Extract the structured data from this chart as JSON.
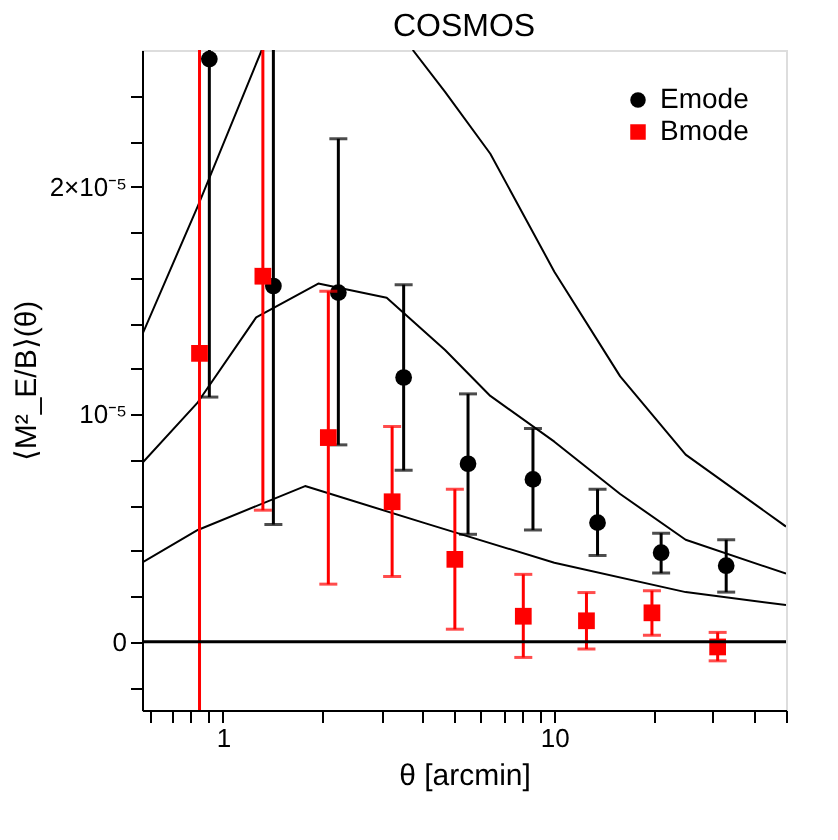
{
  "chart_data": {
    "type": "scatter",
    "title": "COSMOS",
    "xlabel": "θ [arcmin]",
    "ylabel": "⟨M²_E/B⟩(θ)",
    "log": "x",
    "grid": false,
    "legend": "top right",
    "xlim": [
      0.57,
      50
    ],
    "ylim": [
      -3e-06,
      2.6e-05
    ],
    "xticks": [
      {
        "value": 0.6,
        "label": null
      },
      {
        "value": 0.7,
        "label": null
      },
      {
        "value": 0.8,
        "label": null
      },
      {
        "value": 0.9,
        "label": null
      },
      1,
      {
        "value": 2,
        "label": null
      },
      {
        "value": 3,
        "label": null
      },
      {
        "value": 4,
        "label": null
      },
      {
        "value": 5,
        "label": null
      },
      {
        "value": 6,
        "label": null
      },
      {
        "value": 7,
        "label": null
      },
      {
        "value": 8,
        "label": null
      },
      {
        "value": 9,
        "label": null
      },
      10,
      {
        "value": 20,
        "label": null
      },
      {
        "value": 30,
        "label": null
      },
      {
        "value": 40,
        "label": null
      },
      {
        "value": 50,
        "label": null
      }
    ],
    "yticks": [
      {
        "value": -2e-06,
        "label": null
      },
      {
        "value": 0,
        "label": "0"
      },
      {
        "value": 2e-06,
        "label": null
      },
      {
        "value": 4e-06,
        "label": null
      },
      {
        "value": 6e-06,
        "label": null
      },
      {
        "value": 8e-06,
        "label": null
      },
      {
        "value": 1e-05,
        "label": "10⁻⁵"
      },
      {
        "value": 1.2e-05,
        "label": null
      },
      {
        "value": 1.4e-05,
        "label": null
      },
      {
        "value": 1.6e-05,
        "label": null
      },
      {
        "value": 1.8e-05,
        "label": null
      },
      {
        "value": 2e-05,
        "label": "2×10⁻⁵"
      },
      {
        "value": 2.2e-05,
        "label": null
      },
      {
        "value": 2.4e-05,
        "label": null
      }
    ],
    "ref_lines": [
      {
        "axis": "y",
        "value": 0,
        "color": "#000000"
      }
    ],
    "series": [
      {
        "type": "line",
        "color": "#000000",
        "marker": "none",
        "x": [
          0.57,
          0.84,
          1.77,
          4.09,
          10,
          24.9,
          50
        ],
        "values": [
          3.47e-06,
          4.91e-06,
          6.84e-06,
          5.2e-06,
          3.47e-06,
          2.18e-06,
          1.61e-06
        ]
      },
      {
        "type": "line",
        "color": "#000000",
        "marker": "none",
        "x": [
          0.57,
          0.84,
          1.26,
          1.94,
          3.12,
          4.68,
          6.41,
          10,
          15.8,
          24.9,
          50
        ],
        "values": [
          7.84e-06,
          1.052e-05,
          1.425e-05,
          1.574e-05,
          1.511e-05,
          1.282e-05,
          1.08e-05,
          8.79e-06,
          6.49e-06,
          4.48e-06,
          2.99e-06
        ]
      },
      {
        "type": "line",
        "color": "#000000",
        "marker": "none",
        "x": [
          0.57,
          0.84,
          1.31
        ],
        "values": [
          1.347e-05,
          1.914e-05,
          2.6e-05
        ]
      },
      {
        "type": "line",
        "color": "#000000",
        "marker": "none",
        "x": [
          3.74,
          4.68,
          6.41,
          10,
          15.8,
          24.9,
          50
        ],
        "values": [
          2.6e-05,
          2.416e-05,
          2.144e-05,
          1.626e-05,
          1.166e-05,
          8.22e-06,
          5.06e-06
        ]
      },
      {
        "name": "Emode",
        "type": "scatter",
        "color": "#000000",
        "marker": "circle",
        "x": [
          0.91,
          1.42,
          2.23,
          3.51,
          5.49,
          8.62,
          13.5,
          21.0,
          33.0
        ],
        "values": [
          2.56e-05,
          1.563e-05,
          1.534e-05,
          1.161e-05,
          7.82e-06,
          7.13e-06,
          5.23e-06,
          3.91e-06,
          3.34e-06
        ],
        "errors": [
          [
            1.075e-05,
            2.6e-05
          ],
          [
            5.15e-06,
            2.6e-05
          ],
          [
            8.65e-06,
            2.21e-05
          ],
          [
            7.53e-06,
            1.569e-05
          ],
          [
            4.72e-06,
            1.089e-05
          ],
          [
            4.91e-06,
            9.37e-06
          ],
          [
            3.79e-06,
            6.7e-06
          ],
          [
            3.02e-06,
            4.77e-06
          ],
          [
            2.18e-06,
            4.48e-06
          ]
        ]
      },
      {
        "name": "Bmode",
        "type": "scatter",
        "color": "#ff0000",
        "marker": "square",
        "x": [
          0.85,
          1.32,
          2.08,
          3.24,
          5.01,
          8.06,
          12.5,
          19.7,
          31.1
        ],
        "values": [
          1.267e-05,
          1.606e-05,
          8.97e-06,
          6.15e-06,
          3.62e-06,
          1.12e-06,
          9.2e-07,
          1.27e-06,
          -2.3e-07
        ],
        "errors": [
          [
            -3e-06,
            2.6e-05
          ],
          [
            5.78e-06,
            2.6e-05
          ],
          [
            2.53e-06,
            1.54e-05
          ],
          [
            2.87e-06,
            9.46e-06
          ],
          [
            5.5e-07,
            6.7e-06
          ],
          [
            -6.9e-07,
            2.96e-06
          ],
          [
            -3.2e-07,
            2.16e-06
          ],
          [
            2.8e-07,
            2.24e-06
          ],
          [
            -8.4e-07,
            4.1e-07
          ]
        ]
      }
    ]
  }
}
